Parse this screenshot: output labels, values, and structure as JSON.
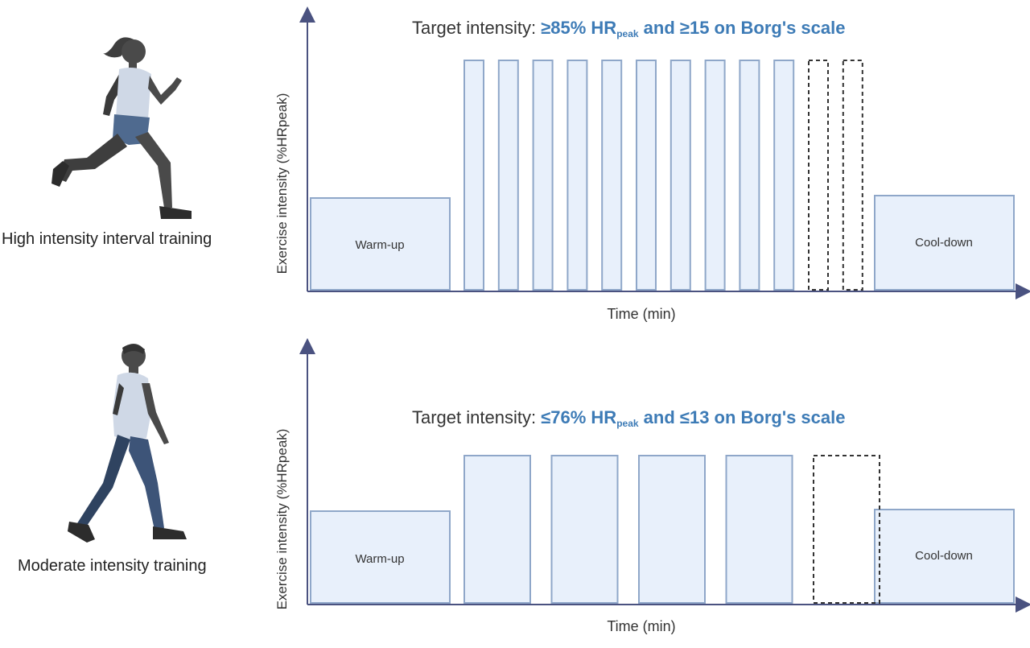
{
  "colors": {
    "axis": "#4a5280",
    "block_fill": "#e8f0fb",
    "block_stroke": "#8fa7c9",
    "highlight": "#3d7bb6",
    "dashed": "#333333"
  },
  "panels": [
    {
      "id": "hiit",
      "person_icon": "running-woman-icon",
      "person_label": "High intensity interval training",
      "y_axis_label": "Exercise intensity (%HRpeak)",
      "x_axis_label": "Time (min)",
      "target_prefix": "Target intensity: ",
      "target_part1": "≥85% HR",
      "target_sub": "peak",
      "target_part2": " and ≥15 on Borg's scale",
      "warmup_label": "Warm-up",
      "cooldown_label": "Cool-down",
      "interval_count": 10,
      "dashed_interval_count": 2
    },
    {
      "id": "mict",
      "person_icon": "walking-man-icon",
      "person_label": "Moderate intensity training",
      "y_axis_label": "Exercise intensity (%HRpeak)",
      "x_axis_label": "Time (min)",
      "target_prefix": "Target intensity: ",
      "target_part1": "≤76% HR",
      "target_sub": "peak",
      "target_part2": " and ≤13 on Borg's scale",
      "warmup_label": "Warm-up",
      "cooldown_label": "Cool-down",
      "interval_count": 4,
      "dashed_interval_count": 1
    }
  ]
}
